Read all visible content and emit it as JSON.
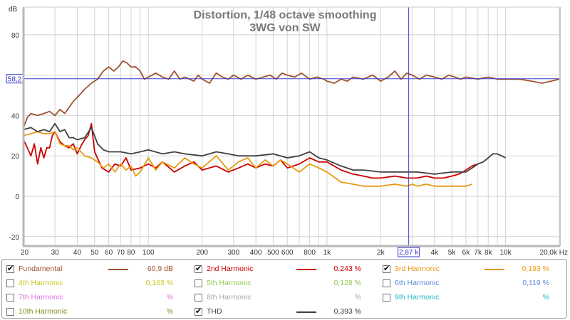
{
  "chart_data": {
    "type": "line",
    "title": "Distortion, 1/48 octave smoothing",
    "subtitle": "3WG von SW",
    "ylabel": "dB",
    "xlabel": "Hz",
    "xscale": "log",
    "xlim": [
      20,
      20000
    ],
    "ylim": [
      -25,
      95
    ],
    "grid": true,
    "y_ticks": [
      -20,
      0,
      20,
      40,
      80
    ],
    "x_ticks": [
      {
        "v": 20,
        "label": "20"
      },
      {
        "v": 30,
        "label": "30"
      },
      {
        "v": 40,
        "label": "40"
      },
      {
        "v": 50,
        "label": "50"
      },
      {
        "v": 60,
        "label": "60"
      },
      {
        "v": 70,
        "label": "70"
      },
      {
        "v": 80,
        "label": "80"
      },
      {
        "v": 100,
        "label": "100"
      },
      {
        "v": 200,
        "label": "200"
      },
      {
        "v": 300,
        "label": "300"
      },
      {
        "v": 400,
        "label": "400"
      },
      {
        "v": 500,
        "label": "500"
      },
      {
        "v": 600,
        "label": "600"
      },
      {
        "v": 800,
        "label": "800"
      },
      {
        "v": 1000,
        "label": "1k"
      },
      {
        "v": 2000,
        "label": "2k"
      },
      {
        "v": 4000,
        "label": "4k"
      },
      {
        "v": 5000,
        "label": "5k"
      },
      {
        "v": 6000,
        "label": "6k"
      },
      {
        "v": 7000,
        "label": "7k"
      },
      {
        "v": 8000,
        "label": "8k"
      },
      {
        "v": 10000,
        "label": "10k"
      },
      {
        "v": 20000,
        "label": "20,0k Hz"
      }
    ],
    "x_minor_grid": [
      20,
      30,
      40,
      50,
      60,
      70,
      80,
      90,
      100,
      200,
      300,
      400,
      500,
      600,
      700,
      800,
      900,
      1000,
      2000,
      3000,
      4000,
      5000,
      6000,
      7000,
      8000,
      9000,
      10000,
      20000
    ],
    "cursor": {
      "x": 2870,
      "x_label": "2,87 k",
      "y": 58.2,
      "y_label": "58,2",
      "color": "#3a3acc"
    },
    "series": [
      {
        "name": "Fundamental",
        "color": "#a0522d",
        "x": [
          20,
          21,
          22,
          24,
          26,
          28,
          30,
          32,
          34,
          36,
          38,
          40,
          44,
          48,
          52,
          56,
          60,
          64,
          68,
          72,
          76,
          80,
          85,
          90,
          95,
          100,
          110,
          120,
          130,
          140,
          150,
          160,
          170,
          180,
          190,
          200,
          220,
          240,
          260,
          280,
          300,
          330,
          360,
          400,
          440,
          480,
          520,
          560,
          600,
          660,
          720,
          800,
          880,
          960,
          1000,
          1100,
          1200,
          1300,
          1400,
          1600,
          1800,
          2000,
          2200,
          2400,
          2600,
          2800,
          3000,
          3300,
          3600,
          4000,
          4400,
          4800,
          5200,
          5600,
          6000,
          7000,
          8000,
          9000,
          10000,
          12000,
          14000,
          16000,
          18000,
          20000
        ],
        "y": [
          34,
          39,
          41,
          40,
          41,
          42,
          40,
          43,
          41,
          44,
          47,
          49,
          53,
          56,
          58,
          62,
          64,
          62,
          64,
          67,
          66,
          64,
          64,
          62,
          58,
          59,
          61,
          59,
          58,
          62,
          58,
          59,
          58,
          57,
          60,
          58,
          56,
          61,
          59,
          58,
          60,
          58,
          60,
          58,
          59,
          60,
          58,
          61,
          60,
          59,
          61,
          58,
          59,
          58,
          57,
          56,
          58,
          57,
          59,
          58,
          60,
          57,
          59,
          62,
          58,
          61,
          60,
          58,
          60,
          59,
          58,
          60,
          59,
          58,
          59,
          58,
          59,
          58,
          58,
          58,
          57,
          56,
          57,
          58
        ]
      },
      {
        "name": "2nd Harmonic",
        "color": "#cc0000",
        "x": [
          20,
          21,
          22,
          23,
          24,
          25,
          26,
          27,
          28,
          29,
          30,
          32,
          34,
          36,
          38,
          40,
          42,
          44,
          46,
          48,
          50,
          55,
          60,
          65,
          70,
          75,
          80,
          90,
          100,
          110,
          120,
          140,
          160,
          180,
          200,
          240,
          280,
          320,
          360,
          400,
          450,
          500,
          550,
          600,
          700,
          800,
          900,
          1000,
          1200,
          1400,
          1600,
          1800,
          2000,
          2400,
          2800,
          3200,
          3600,
          4000,
          4500,
          5000,
          5500,
          6000,
          6500,
          7000
        ],
        "y": [
          28,
          24,
          20,
          26,
          16,
          24,
          19,
          24,
          24,
          30,
          32,
          27,
          25,
          24,
          26,
          21,
          25,
          28,
          30,
          36,
          22,
          14,
          12,
          16,
          15,
          19,
          13,
          14,
          16,
          14,
          17,
          12,
          15,
          17,
          13,
          15,
          12,
          14,
          16,
          14,
          16,
          15,
          18,
          14,
          16,
          19,
          17,
          17,
          13,
          11,
          10,
          9,
          9,
          10,
          9,
          9,
          10,
          9,
          9,
          10,
          11,
          13,
          15,
          16
        ]
      },
      {
        "name": "3rd Harmonic",
        "color": "#e89a10",
        "x": [
          20,
          22,
          24,
          26,
          28,
          30,
          32,
          34,
          36,
          38,
          40,
          44,
          48,
          52,
          56,
          60,
          65,
          70,
          75,
          80,
          85,
          90,
          100,
          110,
          120,
          140,
          160,
          180,
          200,
          240,
          280,
          320,
          360,
          400,
          450,
          500,
          550,
          600,
          700,
          800,
          900,
          1000,
          1200,
          1400,
          1600,
          2000,
          2400,
          2800,
          3000,
          3200,
          3600,
          4000,
          4500,
          5000,
          5500,
          6000,
          6500
        ],
        "y": [
          30,
          31,
          32,
          31,
          31,
          32,
          26,
          25,
          25,
          23,
          24,
          20,
          19,
          17,
          14,
          16,
          12,
          16,
          13,
          15,
          10,
          12,
          19,
          13,
          17,
          14,
          19,
          16,
          14,
          20,
          13,
          17,
          19,
          14,
          18,
          15,
          18,
          16,
          12,
          16,
          14,
          12,
          7,
          6,
          5,
          5,
          6,
          5,
          6,
          5,
          6,
          5,
          5,
          5,
          5,
          5,
          6
        ]
      },
      {
        "name": "THD",
        "color": "#404040",
        "x": [
          20,
          22,
          24,
          26,
          28,
          30,
          32,
          34,
          36,
          38,
          40,
          44,
          48,
          52,
          56,
          60,
          70,
          80,
          90,
          100,
          120,
          140,
          160,
          200,
          240,
          280,
          320,
          400,
          500,
          600,
          700,
          800,
          900,
          1000,
          1200,
          1400,
          1600,
          2000,
          2400,
          2800,
          3200,
          4000,
          5000,
          6000,
          6500,
          7000,
          7500,
          8000,
          8500,
          9000,
          9500,
          10000
        ],
        "y": [
          33,
          34,
          32,
          33,
          32,
          36,
          32,
          33,
          29,
          29,
          28,
          29,
          34,
          26,
          23,
          22,
          22,
          21,
          22,
          23,
          21,
          22,
          21,
          20,
          22,
          21,
          20,
          20,
          21,
          19,
          20,
          22,
          19,
          18,
          15,
          13,
          13,
          12,
          12,
          12,
          12,
          11,
          12,
          12,
          14,
          16,
          17,
          19,
          21,
          21,
          20,
          19
        ]
      }
    ]
  },
  "legend": {
    "items": [
      {
        "label": "Fundamental",
        "value": "60,9 dB",
        "checked": true,
        "color": "#a0522d",
        "show_line": true
      },
      {
        "label": "2nd Harmonic",
        "value": "0,243 %",
        "checked": true,
        "color": "#cc0000",
        "show_line": true
      },
      {
        "label": "3rd Harmonic",
        "value": "0,193 %",
        "checked": true,
        "color": "#e89a10",
        "show_line": true
      },
      {
        "label": "4th Harmonic",
        "value": "0,163 %",
        "checked": false,
        "color": "#c8c820",
        "show_line": false
      },
      {
        "label": "5th Harmonic",
        "value": "0,128 %",
        "checked": false,
        "color": "#90c850",
        "show_line": false
      },
      {
        "label": "6th Harmonic",
        "value": "0,119 %",
        "checked": false,
        "color": "#5a8ad8",
        "show_line": false
      },
      {
        "label": "7th Harmonic",
        "value": "%",
        "checked": false,
        "color": "#e070e0",
        "show_line": false
      },
      {
        "label": "8th Harmonic",
        "value": "%",
        "checked": false,
        "color": "#a8a8a8",
        "show_line": false
      },
      {
        "label": "9th Harmonic",
        "value": "%",
        "checked": false,
        "color": "#20b8c8",
        "show_line": false
      },
      {
        "label": "10th Harmonic",
        "value": "%",
        "checked": false,
        "color": "#8a8a20",
        "show_line": false
      },
      {
        "label": "THD",
        "value": "0,393 %",
        "checked": true,
        "color": "#404040",
        "show_line": true
      }
    ]
  }
}
